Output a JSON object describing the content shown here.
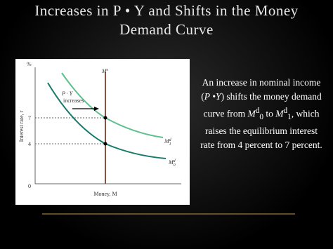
{
  "title": [
    "Increases in P • Y and Shifts in the Money",
    "Demand Curve"
  ],
  "diagram": {
    "y_axis_unit": "%",
    "y_axis_label": "Interest rate, r",
    "x_axis_label": "Money, M",
    "ticks": [
      "7",
      "4",
      "0"
    ],
    "supply_label": {
      "base": "M",
      "sup": "s"
    },
    "shift_label": [
      "P · Y",
      "increases"
    ],
    "curve_1": {
      "base": "M",
      "sup": "d",
      "sub": "1"
    },
    "curve_0": {
      "base": "M",
      "sup": "d",
      "sub": "0"
    }
  },
  "body": [
    "An increase in nominal income (",
    "P",
    " •",
    "Y",
    ") shifts the money demand curve from ",
    "M",
    "d",
    "0",
    " to ",
    "M",
    "d",
    "1",
    ", which raises the equilibrium interest rate from 4  percent to 7 percent."
  ]
}
